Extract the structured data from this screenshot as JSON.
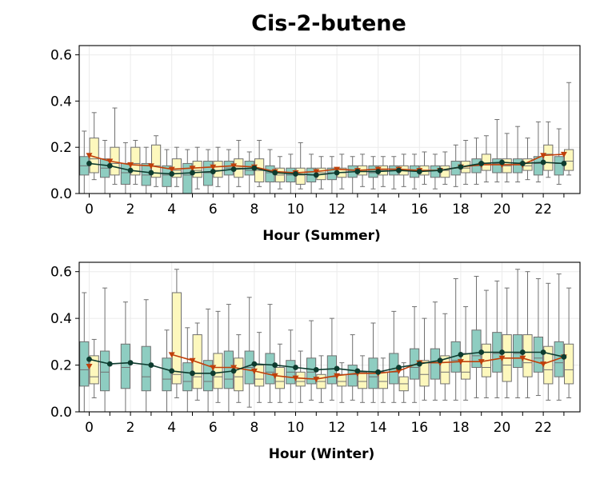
{
  "chart_data": {
    "type": "box",
    "title": "Cis-2-butene",
    "colors": {
      "box_a": "#8ecdc1",
      "box_b": "#fdf8bd",
      "line_a": "#0d3b2e",
      "line_b": "#c0400a",
      "whisker": "#707070",
      "grid": "#ebebeb"
    },
    "panels": [
      {
        "xlabel": "Hour (Summer)",
        "ylim": [
          0,
          0.64
        ],
        "yticks": [
          "0.0",
          "0.2",
          "0.4",
          "0.6"
        ],
        "xticks": [
          "0",
          "2",
          "4",
          "6",
          "8",
          "10",
          "12",
          "14",
          "16",
          "18",
          "20",
          "22"
        ],
        "hours": [
          0,
          1,
          2,
          3,
          4,
          5,
          6,
          7,
          8,
          9,
          10,
          11,
          12,
          13,
          14,
          15,
          16,
          17,
          18,
          19,
          20,
          21,
          22,
          23
        ],
        "series_a_line": [
          0.13,
          0.12,
          0.1,
          0.09,
          0.085,
          0.09,
          0.095,
          0.105,
          0.11,
          0.09,
          0.085,
          0.08,
          0.09,
          0.095,
          0.095,
          0.1,
          0.095,
          0.1,
          0.115,
          0.13,
          0.135,
          0.13,
          0.135,
          0.13
        ],
        "series_b_line": [
          0.165,
          0.14,
          0.125,
          0.12,
          0.105,
          0.11,
          0.115,
          0.12,
          0.115,
          0.095,
          0.09,
          0.095,
          0.105,
          0.1,
          0.105,
          0.105,
          0.1,
          0.1,
          0.115,
          0.125,
          0.125,
          0.125,
          0.165,
          0.17
        ],
        "series_a_box": [
          [
            0,
            0.08,
            0.12,
            0.16,
            0.27
          ],
          [
            0,
            0.07,
            0.11,
            0.15,
            0.23
          ],
          [
            0,
            0.04,
            0.09,
            0.13,
            0.22
          ],
          [
            0,
            0.035,
            0.08,
            0.13,
            0.2
          ],
          [
            0,
            0.03,
            0.08,
            0.12,
            0.19
          ],
          [
            0,
            0,
            0.08,
            0.13,
            0.19
          ],
          [
            0,
            0.035,
            0.09,
            0.14,
            0.19
          ],
          [
            0,
            0.08,
            0.11,
            0.14,
            0.19
          ],
          [
            0,
            0.08,
            0.1,
            0.14,
            0.18
          ],
          [
            0,
            0.05,
            0.09,
            0.12,
            0.19
          ],
          [
            0,
            0.05,
            0.08,
            0.11,
            0.17
          ],
          [
            0,
            0.05,
            0.08,
            0.11,
            0.17
          ],
          [
            0,
            0.06,
            0.09,
            0.11,
            0.16
          ],
          [
            0,
            0.07,
            0.1,
            0.12,
            0.16
          ],
          [
            0.02,
            0.07,
            0.09,
            0.12,
            0.16
          ],
          [
            0.02,
            0.08,
            0.1,
            0.12,
            0.16
          ],
          [
            0.02,
            0.07,
            0.1,
            0.12,
            0.17
          ],
          [
            0.02,
            0.07,
            0.1,
            0.12,
            0.17
          ],
          [
            0.03,
            0.08,
            0.11,
            0.14,
            0.21
          ],
          [
            0.04,
            0.09,
            0.12,
            0.15,
            0.24
          ],
          [
            0.05,
            0.09,
            0.13,
            0.15,
            0.32
          ],
          [
            0.05,
            0.09,
            0.13,
            0.15,
            0.29
          ],
          [
            0.05,
            0.08,
            0.13,
            0.16,
            0.31
          ],
          [
            0.04,
            0.08,
            0.13,
            0.16,
            0.28
          ]
        ],
        "series_b_box": [
          [
            0.06,
            0.09,
            0.15,
            0.24,
            0.35
          ],
          [
            0.04,
            0.08,
            0.13,
            0.2,
            0.37
          ],
          [
            0.04,
            0.08,
            0.13,
            0.2,
            0.23
          ],
          [
            0.03,
            0.07,
            0.12,
            0.21,
            0.25
          ],
          [
            0.03,
            0.07,
            0.1,
            0.15,
            0.2
          ],
          [
            0.02,
            0.07,
            0.1,
            0.14,
            0.2
          ],
          [
            0.03,
            0.07,
            0.1,
            0.14,
            0.2
          ],
          [
            0.03,
            0.07,
            0.11,
            0.15,
            0.23
          ],
          [
            0.03,
            0.05,
            0.1,
            0.15,
            0.23
          ],
          [
            0.02,
            0.05,
            0.08,
            0.11,
            0.16
          ],
          [
            0.02,
            0.04,
            0.08,
            0.11,
            0.22
          ],
          [
            0.02,
            0.06,
            0.09,
            0.11,
            0.16
          ],
          [
            0.02,
            0.07,
            0.09,
            0.11,
            0.17
          ],
          [
            0.03,
            0.08,
            0.1,
            0.12,
            0.17
          ],
          [
            0.03,
            0.08,
            0.1,
            0.12,
            0.16
          ],
          [
            0.03,
            0.08,
            0.1,
            0.12,
            0.17
          ],
          [
            0.04,
            0.08,
            0.1,
            0.12,
            0.18
          ],
          [
            0.04,
            0.07,
            0.1,
            0.12,
            0.18
          ],
          [
            0.04,
            0.09,
            0.11,
            0.14,
            0.23
          ],
          [
            0.05,
            0.1,
            0.13,
            0.17,
            0.25
          ],
          [
            0.05,
            0.09,
            0.12,
            0.15,
            0.26
          ],
          [
            0.06,
            0.1,
            0.12,
            0.15,
            0.24
          ],
          [
            0.07,
            0.1,
            0.17,
            0.21,
            0.31
          ],
          [
            0.08,
            0.1,
            0.14,
            0.19,
            0.48
          ]
        ]
      },
      {
        "xlabel": "Hour (Winter)",
        "ylim": [
          0,
          0.64
        ],
        "yticks": [
          "0.0",
          "0.2",
          "0.4",
          "0.6"
        ],
        "xticks": [
          "0",
          "2",
          "4",
          "6",
          "8",
          "10",
          "12",
          "14",
          "16",
          "18",
          "20",
          "22"
        ],
        "hours": [
          0,
          1,
          2,
          3,
          4,
          5,
          6,
          7,
          8,
          9,
          10,
          11,
          12,
          13,
          14,
          15,
          16,
          17,
          18,
          19,
          20,
          21,
          22,
          23
        ],
        "series_a_line": [
          0.225,
          0.205,
          0.21,
          0.2,
          0.175,
          0.165,
          0.165,
          0.175,
          0.205,
          0.2,
          0.19,
          0.18,
          0.185,
          0.175,
          0.17,
          0.19,
          0.205,
          0.22,
          0.245,
          0.255,
          0.255,
          0.255,
          0.255,
          0.235
        ],
        "series_b_line": [
          0.195,
          null,
          null,
          null,
          0.245,
          0.22,
          0.19,
          0.19,
          0.175,
          0.155,
          0.145,
          0.14,
          0.155,
          0.165,
          0.165,
          0.175,
          0.21,
          0.21,
          0.215,
          0.215,
          0.23,
          0.23,
          0.205,
          0.235
        ],
        "series_a_box": [
          [
            0,
            0.11,
            0.18,
            0.3,
            0.51
          ],
          [
            0,
            0.09,
            0.17,
            0.26,
            0.53
          ],
          [
            0,
            0.1,
            0.19,
            0.29,
            0.47
          ],
          [
            0,
            0.09,
            0.15,
            0.28,
            0.48
          ],
          [
            0,
            0.09,
            0.14,
            0.23,
            0.35
          ],
          [
            0,
            0.09,
            0.13,
            0.21,
            0.36
          ],
          [
            0,
            0.09,
            0.13,
            0.22,
            0.44
          ],
          [
            0,
            0.1,
            0.14,
            0.26,
            0.46
          ],
          [
            0.02,
            0.12,
            0.19,
            0.26,
            0.49
          ],
          [
            0.04,
            0.12,
            0.17,
            0.25,
            0.46
          ],
          [
            0.04,
            0.12,
            0.17,
            0.22,
            0.35
          ],
          [
            0.05,
            0.12,
            0.17,
            0.23,
            0.39
          ],
          [
            0.05,
            0.12,
            0.15,
            0.24,
            0.4
          ],
          [
            0.05,
            0.11,
            0.16,
            0.2,
            0.33
          ],
          [
            0.04,
            0.1,
            0.15,
            0.23,
            0.38
          ],
          [
            0.04,
            0.12,
            0.17,
            0.25,
            0.43
          ],
          [
            0.04,
            0.14,
            0.19,
            0.27,
            0.45
          ],
          [
            0.05,
            0.14,
            0.21,
            0.27,
            0.47
          ],
          [
            0.05,
            0.17,
            0.22,
            0.3,
            0.57
          ],
          [
            0.06,
            0.19,
            0.24,
            0.35,
            0.58
          ],
          [
            0.06,
            0.17,
            0.25,
            0.34,
            0.56
          ],
          [
            0.06,
            0.19,
            0.25,
            0.33,
            0.61
          ],
          [
            0.07,
            0.17,
            0.23,
            0.32,
            0.57
          ],
          [
            0.05,
            0.15,
            0.21,
            0.3,
            0.59
          ]
        ],
        "series_b_box": [
          [
            0.06,
            0.12,
            0.15,
            0.24,
            0.31
          ],
          [
            0,
            0,
            0,
            0,
            0
          ],
          [
            0,
            0,
            0,
            0,
            0
          ],
          [
            0,
            0,
            0,
            0,
            0
          ],
          [
            0.06,
            0.12,
            0.16,
            0.51,
            0.61
          ],
          [
            0.05,
            0.1,
            0.15,
            0.33,
            0.38
          ],
          [
            0.04,
            0.1,
            0.15,
            0.25,
            0.43
          ],
          [
            0.04,
            0.09,
            0.15,
            0.23,
            0.33
          ],
          [
            0.04,
            0.11,
            0.14,
            0.2,
            0.34
          ],
          [
            0.04,
            0.1,
            0.13,
            0.19,
            0.29
          ],
          [
            0.04,
            0.11,
            0.13,
            0.17,
            0.26
          ],
          [
            0.04,
            0.1,
            0.13,
            0.16,
            0.24
          ],
          [
            0.04,
            0.11,
            0.13,
            0.16,
            0.21
          ],
          [
            0.04,
            0.1,
            0.13,
            0.17,
            0.24
          ],
          [
            0.04,
            0.1,
            0.13,
            0.17,
            0.23
          ],
          [
            0.04,
            0.09,
            0.12,
            0.15,
            0.21
          ],
          [
            0.05,
            0.11,
            0.16,
            0.22,
            0.4
          ],
          [
            0.05,
            0.12,
            0.17,
            0.24,
            0.42
          ],
          [
            0.05,
            0.14,
            0.17,
            0.25,
            0.45
          ],
          [
            0.06,
            0.15,
            0.19,
            0.29,
            0.52
          ],
          [
            0.06,
            0.13,
            0.2,
            0.33,
            0.53
          ],
          [
            0.06,
            0.15,
            0.21,
            0.33,
            0.6
          ],
          [
            0.05,
            0.12,
            0.18,
            0.28,
            0.55
          ],
          [
            0.06,
            0.12,
            0.18,
            0.29,
            0.53
          ]
        ]
      }
    ]
  }
}
